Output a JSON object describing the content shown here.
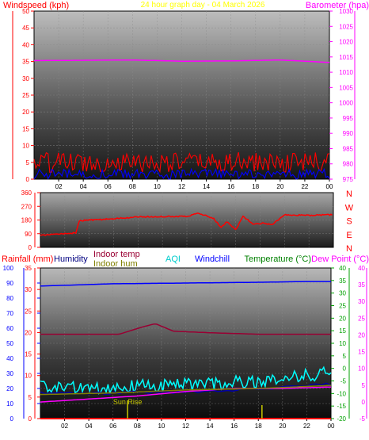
{
  "chart_data": [
    {
      "type": "line",
      "panel": "top",
      "title": "24 hour graph day - 04 March 2026",
      "x_ticks": [
        "02",
        "04",
        "06",
        "08",
        "10",
        "12",
        "14",
        "16",
        "18",
        "20",
        "22",
        "00"
      ],
      "left_axis": {
        "label": "Windspeed (kph)",
        "range": [
          0,
          50
        ],
        "ticks": [
          "0",
          "5",
          "10",
          "15",
          "20",
          "25",
          "30",
          "35",
          "40",
          "45",
          "50"
        ],
        "color": "#ff0000"
      },
      "right_axis": {
        "label": "Barometer (hpa)",
        "range": [
          975,
          1030
        ],
        "ticks": [
          "975",
          "980",
          "985",
          "990",
          "995",
          "1000",
          "1005",
          "1010",
          "1015",
          "1020",
          "1025",
          "1030"
        ],
        "color": "#ff00ff"
      },
      "series": [
        {
          "name": "gust",
          "color": "#ff0000",
          "axis": "left",
          "baseline": 5,
          "noise": 6,
          "points": 170
        },
        {
          "name": "speed",
          "color": "#0000ff",
          "axis": "left",
          "baseline": 1.5,
          "noise": 3,
          "points": 170
        },
        {
          "name": "barometer",
          "color": "#ff00ff",
          "axis": "right",
          "x": [
            0,
            4,
            8,
            12,
            16,
            20,
            24
          ],
          "y": [
            1013.8,
            1013.9,
            1014.0,
            1013.6,
            1013.7,
            1014.0,
            1013.2
          ]
        }
      ],
      "grid": true
    },
    {
      "type": "line",
      "panel": "direction",
      "x_ticks": [],
      "left_axis": {
        "range": [
          0,
          360
        ],
        "ticks": [
          "0",
          "90",
          "180",
          "270",
          "360"
        ],
        "color": "#ff0000"
      },
      "right_letters": [
        "N",
        "W",
        "S",
        "E",
        "N"
      ],
      "right_color": "#ff0000",
      "series": [
        {
          "name": "wind direction",
          "color": "#ff0000",
          "x": [
            0,
            1,
            2.9,
            3.2,
            6,
            8,
            12,
            13,
            14.2,
            14.8,
            15.3,
            16,
            16.6,
            17.5,
            18.2,
            19,
            20,
            22,
            24
          ],
          "y": [
            78,
            85,
            95,
            175,
            188,
            200,
            205,
            225,
            190,
            130,
            170,
            115,
            205,
            150,
            160,
            150,
            215,
            210,
            215
          ]
        }
      ],
      "grid": true
    },
    {
      "type": "line",
      "panel": "bottom",
      "x_ticks": [
        "02",
        "04",
        "06",
        "08",
        "10",
        "12",
        "14",
        "16",
        "18",
        "20",
        "22",
        "00"
      ],
      "legend": [
        "Rainfall (mm)",
        "Humidity",
        "Indoor temp",
        "Indoor hum",
        "AQI",
        "Windchill",
        "Temperature (°C)",
        "Dew Point (°C)"
      ],
      "axes": {
        "humidity": {
          "ticks": [
            "0",
            "10",
            "20",
            "30",
            "40",
            "50",
            "60",
            "70",
            "80",
            "90",
            "100"
          ],
          "color": "#0000ff"
        },
        "rainfall": {
          "ticks": [
            "0",
            "5",
            "10",
            "15",
            "20",
            "25",
            "30",
            "35"
          ],
          "color": "#ff0000"
        },
        "temperature": {
          "ticks": [
            "-20",
            "-15",
            "-10",
            "-5",
            "0",
            "5",
            "10",
            "15",
            "20",
            "25",
            "30",
            "35",
            "40"
          ],
          "color": "#00a000"
        },
        "dewpoint": {
          "ticks": [
            "-5",
            "0",
            "5",
            "10",
            "15",
            "20",
            "25",
            "30",
            "35",
            "40"
          ],
          "color": "#ff00ff"
        }
      },
      "annotations": [
        {
          "text": "Sun Rise",
          "x": 7.2,
          "color": "#c8c800"
        }
      ],
      "series": [
        {
          "name": "Humidity",
          "color": "#0000ff",
          "x": [
            0,
            4,
            6,
            12,
            18,
            22,
            24
          ],
          "y": [
            88,
            89,
            89.5,
            90,
            90.5,
            91,
            91
          ]
        },
        {
          "name": "Indoor temp",
          "color": "#990033",
          "x": [
            0,
            6.5,
            8.5,
            9.5,
            11,
            14,
            18,
            22,
            24
          ],
          "y": [
            56,
            56,
            61,
            63,
            58,
            57,
            56,
            56,
            56
          ]
        },
        {
          "name": "Temperature (°C)",
          "color": "#00ffff",
          "baseline_start": 21,
          "baseline_end": 31,
          "noise": 9,
          "points": 160
        },
        {
          "name": "Windchill",
          "color": "#0000aa",
          "baseline_start": 17,
          "baseline_end": 23,
          "noise": 2,
          "points": 60
        },
        {
          "name": "Dew Point (°C)",
          "color": "#ff00ff",
          "x": [
            0,
            4,
            8,
            12,
            16,
            20,
            24
          ],
          "y": [
            11,
            13,
            15,
            18,
            20,
            20,
            21
          ]
        },
        {
          "name": "Indoor hum",
          "color": "#808000",
          "x": [
            0,
            6,
            12,
            18,
            24
          ],
          "y": [
            16,
            17,
            19,
            20,
            22
          ]
        },
        {
          "name": "Rainfall (mm)",
          "color": "#ff0000",
          "x": [
            0,
            24
          ],
          "y": [
            0,
            0
          ]
        }
      ],
      "grid": true
    }
  ]
}
